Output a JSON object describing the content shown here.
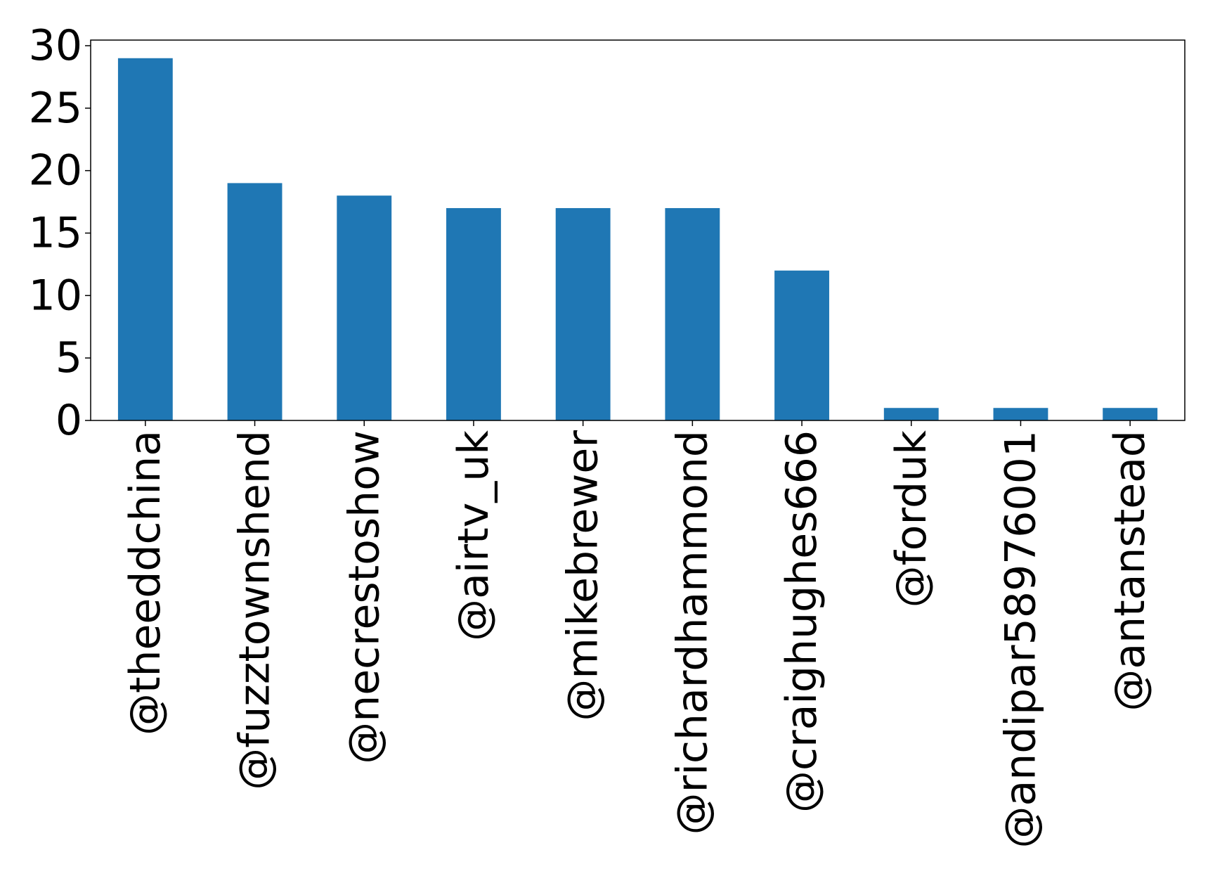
{
  "chart_data": {
    "type": "bar",
    "categories": [
      "@theeddchina",
      "@fuzztownshend",
      "@necrestoshow",
      "@airtv_uk",
      "@mikebrewer",
      "@richardhammond",
      "@craighughes666",
      "@forduk",
      "@andipar58976001",
      "@antanstead"
    ],
    "values": [
      29,
      19,
      18,
      17,
      17,
      17,
      12,
      1,
      1,
      1
    ],
    "yticks": [
      "0",
      "5",
      "10",
      "15",
      "20",
      "25",
      "30"
    ],
    "ylim": [
      0,
      30.45
    ],
    "bar_color": "#1f77b4",
    "grid": false,
    "legend": "none"
  }
}
